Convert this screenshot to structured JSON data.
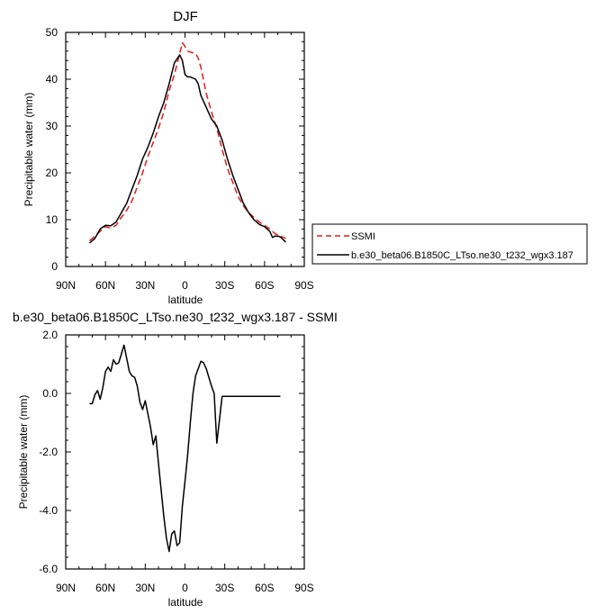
{
  "chart_data": [
    {
      "type": "line",
      "title": "DJF",
      "xlabel": "latitude",
      "ylabel": "Precipitable water (mm)",
      "xlim": [
        90,
        -90
      ],
      "ylim": [
        0,
        50
      ],
      "xticks": [
        90,
        60,
        30,
        0,
        -30,
        -60,
        -90
      ],
      "xtick_labels": [
        "90N",
        "60N",
        "30N",
        "0",
        "30S",
        "60S",
        "90S"
      ],
      "yticks": [
        0,
        10,
        20,
        30,
        40,
        50
      ],
      "ytick_labels": [
        "0",
        "10",
        "20",
        "30",
        "40",
        "50"
      ],
      "grid": false,
      "legend_position": "right",
      "series": [
        {
          "name": "SSMI",
          "color": "#e41a1c",
          "style": "dashed",
          "x": [
            72,
            68,
            64,
            60,
            56,
            52,
            48,
            44,
            40,
            36,
            32,
            28,
            24,
            20,
            16,
            12,
            8,
            4,
            2,
            0,
            -2,
            -4,
            -8,
            -10,
            -12,
            -16,
            -20,
            -24,
            -28,
            -32,
            -36,
            -40,
            -44,
            -48,
            -52,
            -56,
            -60,
            -64,
            -68,
            -72,
            -76
          ],
          "y": [
            5.5,
            6.5,
            7.5,
            8.5,
            8.2,
            8.8,
            10.5,
            12.0,
            14.0,
            17.0,
            20.0,
            23.5,
            26.5,
            29.5,
            33.0,
            37.5,
            41.0,
            45.5,
            47.8,
            47.0,
            46.0,
            45.8,
            45.5,
            44.5,
            42.5,
            37.0,
            33.0,
            29.5,
            25.0,
            21.0,
            18.0,
            15.0,
            13.0,
            11.5,
            10.5,
            9.5,
            8.8,
            8.0,
            7.0,
            6.5,
            6.0
          ]
        },
        {
          "name": "b.e30_beta06.B1850C_LTso.ne30_t232_wgx3.187",
          "color": "#000000",
          "style": "solid",
          "x": [
            72,
            68,
            64,
            60,
            56,
            52,
            48,
            44,
            40,
            36,
            32,
            28,
            24,
            20,
            16,
            12,
            8,
            4,
            2,
            0,
            -2,
            -4,
            -8,
            -10,
            -12,
            -16,
            -20,
            -24,
            -28,
            -32,
            -36,
            -40,
            -44,
            -48,
            -52,
            -56,
            -60,
            -64,
            -66,
            -68,
            -70,
            -72,
            -76
          ],
          "y": [
            5.0,
            6.0,
            8.0,
            8.8,
            8.7,
            9.5,
            11.5,
            13.5,
            16.5,
            19.5,
            23.0,
            25.5,
            28.5,
            32.0,
            35.0,
            39.0,
            43.5,
            45.2,
            44.0,
            41.0,
            40.5,
            40.5,
            40.0,
            39.0,
            36.5,
            34.0,
            31.5,
            30.0,
            27.0,
            23.0,
            19.5,
            16.5,
            13.5,
            11.5,
            10.0,
            9.0,
            8.5,
            7.5,
            6.2,
            6.5,
            6.5,
            6.3,
            5.2
          ]
        }
      ]
    },
    {
      "type": "line",
      "title": "b.e30_beta06.B1850C_LTso.ne30_t232_wgx3.187 - SSMI",
      "xlabel": "latitude",
      "ylabel": "Precipitable water (mm)",
      "xlim": [
        90,
        -90
      ],
      "ylim": [
        -6,
        2
      ],
      "xticks": [
        90,
        60,
        30,
        0,
        -30,
        -60,
        -90
      ],
      "xtick_labels": [
        "90N",
        "60N",
        "30N",
        "0",
        "30S",
        "60S",
        "90S"
      ],
      "yticks": [
        -6,
        -4,
        -2,
        0,
        2
      ],
      "ytick_labels": [
        "-6.0",
        "-4.0",
        "-2.0",
        "0.0",
        "2.0"
      ],
      "grid": false,
      "series": [
        {
          "color": "#000000",
          "style": "solid",
          "x": [
            72,
            70,
            68,
            66,
            64,
            62,
            60,
            58,
            56,
            54,
            52,
            50,
            48,
            46,
            44,
            42,
            40,
            38,
            36,
            34,
            32,
            30,
            28,
            26,
            24,
            22,
            20,
            18,
            16,
            14,
            12,
            10,
            8,
            6,
            4,
            2,
            0,
            -2,
            -4,
            -6,
            -8,
            -10,
            -12,
            -14,
            -16,
            -18,
            -20,
            -22,
            -24,
            -26,
            -28,
            -30,
            -32,
            -34,
            -36,
            -40,
            -44,
            -48,
            -52,
            -56,
            -60,
            -64,
            -66,
            -68,
            -70,
            -72
          ],
          "y": [
            -0.35,
            -0.35,
            -0.05,
            0.1,
            -0.2,
            0.2,
            0.75,
            0.9,
            0.75,
            1.15,
            1.0,
            1.05,
            1.35,
            1.65,
            1.2,
            0.75,
            0.6,
            0.55,
            0.25,
            -0.3,
            -0.55,
            -0.25,
            -0.7,
            -1.15,
            -1.75,
            -1.45,
            -2.4,
            -3.3,
            -4.2,
            -4.95,
            -5.4,
            -4.8,
            -4.7,
            -5.2,
            -5.1,
            -3.85,
            -3.0,
            -2.1,
            -1.0,
            0.0,
            0.6,
            0.85,
            1.1,
            1.05,
            0.85,
            0.55,
            0.25,
            0.0,
            -1.7,
            -0.9,
            -0.1,
            -0.1,
            -0.1,
            -0.1,
            -0.1,
            -0.1,
            -0.1,
            -0.1,
            -0.1,
            -0.1,
            -0.1,
            -0.1,
            -0.1,
            -0.1,
            -0.1,
            -0.1
          ]
        }
      ]
    }
  ]
}
